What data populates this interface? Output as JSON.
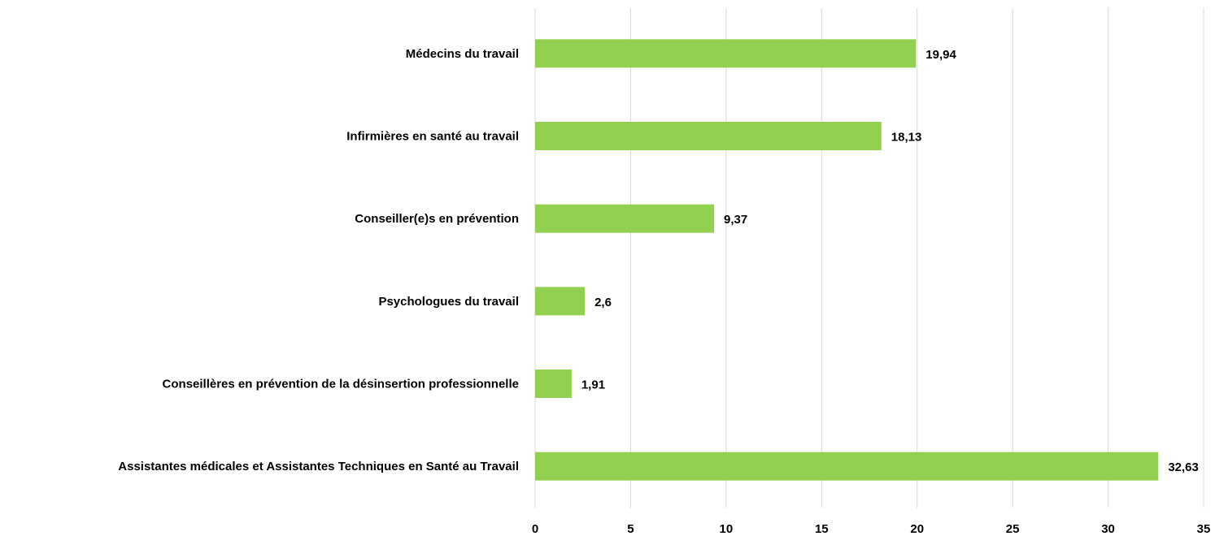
{
  "chart_data": {
    "type": "barh",
    "categories": [
      "Médecins du travail",
      "Infirmières en santé au travail",
      "Conseiller(e)s en prévention",
      "Psychologues du travail",
      "Conseillères en prévention de la désinsertion professionnelle",
      "Assistantes médicales et Assistantes Techniques en Santé au Travail"
    ],
    "values": [
      19.94,
      18.13,
      9.37,
      2.6,
      1.91,
      32.63
    ],
    "value_labels": [
      "19,94",
      "18,13",
      "9,37",
      "2,6",
      "1,91",
      "32,63"
    ],
    "color": "#92d050",
    "xlim": [
      0,
      35
    ],
    "xticks": [
      0,
      5,
      10,
      15,
      20,
      25,
      30,
      35
    ],
    "grid": true
  }
}
